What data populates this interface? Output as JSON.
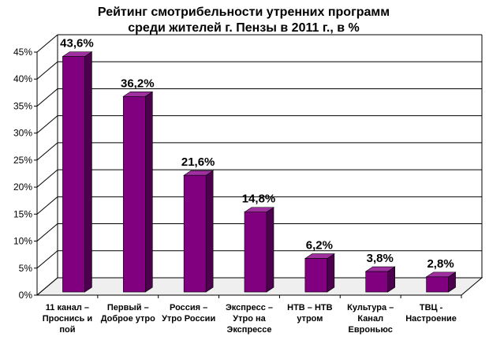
{
  "chart_data": {
    "type": "bar",
    "title": "Рейтинг смотрибельности утренних программ",
    "subtitle": "среди жителей г. Пензы в 2011 г., в %",
    "categories": [
      [
        "11 канал –",
        "Проснись и",
        "пой"
      ],
      [
        "Первый –",
        "Доброе утро"
      ],
      [
        "Россия –",
        "Утро России"
      ],
      [
        "Экспресс –",
        "Утро на",
        "Экспрессе"
      ],
      [
        "НТВ – НТВ",
        "утром"
      ],
      [
        "Культура –",
        "Канал",
        "Евроньюс"
      ],
      [
        "ТВЦ -",
        "Настроение"
      ]
    ],
    "values": [
      43.6,
      36.2,
      21.6,
      14.8,
      6.2,
      3.8,
      2.8
    ],
    "value_labels": [
      "43,6%",
      "36,2%",
      "21,6%",
      "14,8%",
      "6,2%",
      "3,8%",
      "2,8%"
    ],
    "ylim": [
      0,
      45
    ],
    "yticks": [
      0,
      5,
      10,
      15,
      20,
      25,
      30,
      35,
      40,
      45
    ],
    "ytick_labels": [
      "0%",
      "5%",
      "10%",
      "15%",
      "20%",
      "25%",
      "30%",
      "35%",
      "40%",
      "45%"
    ],
    "grid": true,
    "legend": "none",
    "colors": {
      "bar_front": "#800080",
      "bar_side": "#4d004d",
      "bar_top": "#a030a0",
      "grid": "#000000",
      "floor": "#c0c0c0"
    }
  }
}
